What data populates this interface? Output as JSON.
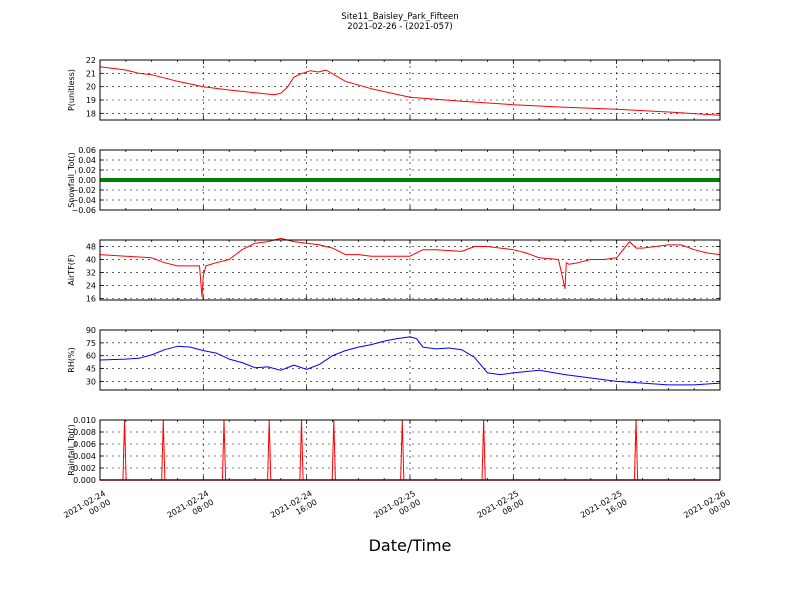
{
  "title_line1": "Site11_Baisley_Park_Fifteen",
  "title_line2": "2021-02-26 - (2021-057)",
  "chart_data": {
    "type": "line",
    "xlabel": "Date/Time",
    "xlim": [
      "2021-02-24 00:00",
      "2021-02-26 00:00"
    ],
    "xticks": [
      {
        "line1": "2021-02-24",
        "line2": "00:00"
      },
      {
        "line1": "2021-02-24",
        "line2": "08:00"
      },
      {
        "line1": "2021-02-24",
        "line2": "16:00"
      },
      {
        "line1": "2021-02-25",
        "line2": "00:00"
      },
      {
        "line1": "2021-02-25",
        "line2": "08:00"
      },
      {
        "line1": "2021-02-25",
        "line2": "16:00"
      },
      {
        "line1": "2021-02-26",
        "line2": "00:00"
      }
    ],
    "grid": true,
    "panels": [
      {
        "ylabel": "P(unitless)",
        "color": "#ff0000",
        "ylim": [
          17.5,
          22
        ],
        "yticks": [
          "18",
          "19",
          "20",
          "21",
          "22"
        ],
        "x_hours": [
          0,
          2,
          3,
          4,
          6,
          8,
          10,
          12,
          13.5,
          14,
          14.5,
          15,
          15.5,
          16.3,
          16.9,
          17.5,
          19,
          21,
          24,
          28,
          32,
          36,
          40,
          44,
          48
        ],
        "values": [
          21.5,
          21.25,
          21.0,
          20.9,
          20.4,
          20.0,
          19.75,
          19.55,
          19.4,
          19.5,
          19.95,
          20.7,
          20.95,
          21.2,
          21.1,
          21.25,
          20.4,
          19.85,
          19.2,
          18.9,
          18.65,
          18.45,
          18.3,
          18.1,
          17.85
        ]
      },
      {
        "ylabel": "Snowfall_Tot()",
        "color": "#008000",
        "ylim": [
          -0.06,
          0.06
        ],
        "yticks": [
          "−0.06",
          "−0.04",
          "−0.02",
          "0.00",
          "0.02",
          "0.04",
          "0.06"
        ],
        "x_hours": [
          0,
          48
        ],
        "values": [
          0,
          0
        ]
      },
      {
        "ylabel": "AirTF(F)",
        "color": "#ff0000",
        "ylim": [
          15,
          52
        ],
        "yticks": [
          "16",
          "24",
          "32",
          "40",
          "48"
        ],
        "x_hours": [
          0,
          2,
          3,
          4,
          5,
          6,
          7,
          7.5,
          7.7,
          7.9,
          8.0,
          8.2,
          9,
          10,
          11,
          12,
          13,
          14,
          15,
          16,
          17,
          18,
          19,
          20,
          21,
          22,
          24,
          25,
          26,
          28,
          29,
          30,
          31,
          32,
          33,
          34,
          35.5,
          36.0,
          36.1,
          36.3,
          37,
          38,
          39,
          40,
          41,
          41.5,
          42,
          43,
          44,
          45,
          46,
          47,
          48
        ],
        "values": [
          43,
          42,
          41.5,
          41,
          38,
          36,
          36,
          36,
          36,
          17,
          30,
          36,
          38,
          40,
          46,
          50,
          51,
          53,
          51,
          50,
          49,
          47,
          43,
          43,
          42,
          42,
          42,
          46,
          46,
          45,
          48,
          48,
          47,
          46,
          44,
          41,
          40,
          22,
          38,
          37,
          38,
          40,
          40,
          41,
          51,
          47,
          47,
          48,
          49,
          49,
          46,
          44,
          43
        ]
      },
      {
        "ylabel": "RH(%)",
        "color": "#0000ff",
        "ylim": [
          20,
          90
        ],
        "yticks": [
          "30",
          "45",
          "60",
          "75",
          "90"
        ],
        "x_hours": [
          0,
          2,
          3,
          4,
          5,
          6,
          7,
          8,
          9,
          10,
          11,
          12,
          13,
          14,
          15,
          16,
          17,
          18,
          19,
          20,
          21,
          22,
          23,
          24,
          24.5,
          25,
          26,
          27,
          28,
          29,
          30,
          31,
          32,
          34,
          36,
          38,
          40,
          42,
          44,
          46,
          48
        ],
        "values": [
          55,
          56,
          57,
          61,
          67,
          71,
          70,
          66,
          63,
          56,
          52,
          46,
          47,
          43,
          49,
          44,
          50,
          60,
          66,
          70,
          73,
          77,
          80,
          82,
          80,
          70,
          68,
          69,
          67,
          58,
          40,
          38,
          40,
          43,
          38,
          34,
          30,
          28,
          26,
          26,
          28
        ]
      },
      {
        "ylabel": "Rainfall_Tot()",
        "color": "#ff0000",
        "ylim": [
          0,
          0.01
        ],
        "yticks": [
          "0.000",
          "0.002",
          "0.004",
          "0.006",
          "0.008",
          "0.010"
        ],
        "spikes_hours": [
          1.9,
          4.9,
          9.6,
          13.1,
          15.6,
          18.1,
          23.4,
          29.7,
          41.5
        ],
        "spike_value": 0.01
      }
    ]
  }
}
